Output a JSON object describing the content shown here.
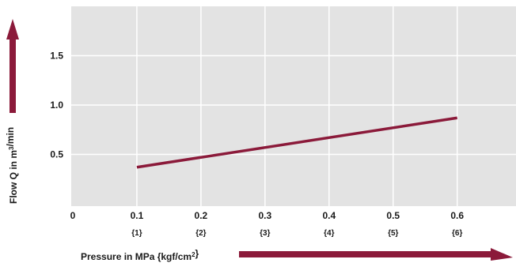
{
  "chart_data": {
    "type": "line",
    "xlabel": "Pressure in MPa {kgf/cm²}",
    "ylabel": "Flow Q in m³/min",
    "xlim": [
      0,
      0.7
    ],
    "ylim": [
      0,
      2.0
    ],
    "x_ticks": [
      {
        "label": "0",
        "sub": ""
      },
      {
        "label": "0.1",
        "sub": "{1}"
      },
      {
        "label": "0.2",
        "sub": "{2}"
      },
      {
        "label": "0.3",
        "sub": "{3}"
      },
      {
        "label": "0.4",
        "sub": "{4}"
      },
      {
        "label": "0.5",
        "sub": "{5}"
      },
      {
        "label": "0.6",
        "sub": "{6}"
      }
    ],
    "y_ticks": [
      "0.5",
      "1.0",
      "1.5"
    ],
    "grid": true,
    "series": [
      {
        "x": [
          0.1,
          0.6
        ],
        "y": [
          0.37,
          0.87
        ]
      }
    ],
    "colors": {
      "line": "#8b1a3a",
      "arrow": "#8b1a3a",
      "plot_bg": "#e3e3e3",
      "grid": "#ffffff"
    }
  }
}
